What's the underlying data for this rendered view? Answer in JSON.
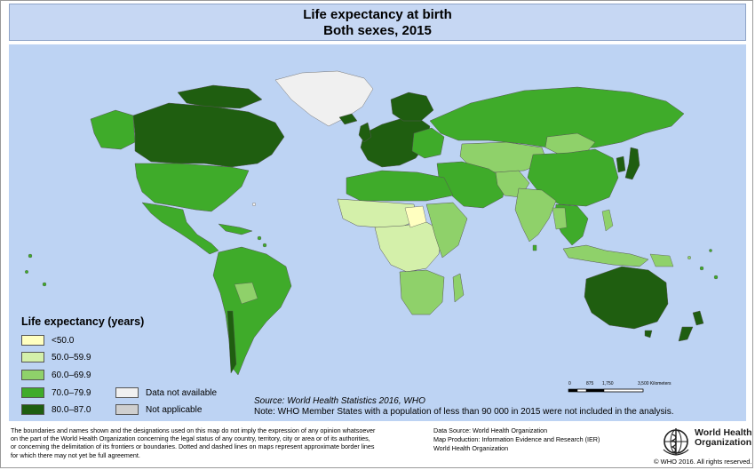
{
  "header": {
    "title_line1": "Life expectancy at birth",
    "title_line2": "Both sexes, 2015"
  },
  "colors": {
    "ocean": "#bdd3f3",
    "lt50": "#ffffc0",
    "50_59": "#d4f0aa",
    "60_69": "#8fd16a",
    "70_79": "#3fab2a",
    "80_87": "#1f5e10",
    "not_available": "#f0f0f0",
    "not_applicable": "#cfcfcf"
  },
  "legend": {
    "title": "Life expectancy (years)",
    "items": [
      {
        "label": "<50.0",
        "color": "#ffffc0"
      },
      {
        "label": "50.0–59.9",
        "color": "#d4f0aa"
      },
      {
        "label": "60.0–69.9",
        "color": "#8fd16a"
      },
      {
        "label": "70.0–79.9",
        "color": "#3fab2a"
      },
      {
        "label": "80.0–87.0",
        "color": "#1f5e10"
      }
    ],
    "extra_items": [
      {
        "label": "Data not available",
        "color": "#f0f0f0"
      },
      {
        "label": "Not applicable",
        "color": "#cfcfcf"
      }
    ]
  },
  "source": "Source: World Health Statistics 2016, WHO",
  "note": "Note: WHO Member States with a population of less than 90 000 in 2015 were not included in the analysis.",
  "scale": {
    "labels": [
      "0",
      "875",
      "1,750",
      "3,500 Kilometers"
    ]
  },
  "footer": {
    "disclaimer_lines": [
      "The boundaries and names shown and the designations used on this map do not imply the expression of any opinion whatsoever",
      "on the part of the World Health Organization concerning the legal status of any country, territory, city or area or of its authorities,",
      "or concerning the delimitation of its frontiers or boundaries. Dotted and dashed lines on maps represent approximate border lines",
      "for which there may not yet be full agreement."
    ],
    "data_source": "Data Source: World Health Organization",
    "map_production": "Map Production: Information Evidence and Research (IER)",
    "org": "World Health Organization",
    "logo_name_line1": "World Health",
    "logo_name_line2": "Organization",
    "copyright": "© WHO 2016. All rights reserved."
  }
}
